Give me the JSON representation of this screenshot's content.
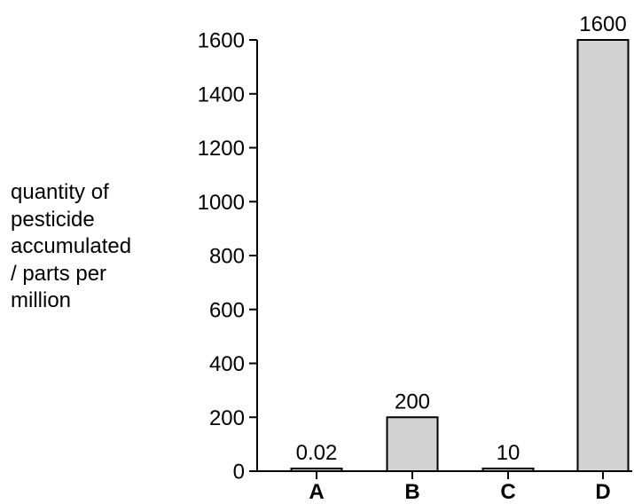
{
  "chart_data": {
    "type": "bar",
    "title": "",
    "xlabel": "",
    "ylabel_lines": [
      "quantity of",
      "pesticide",
      "accumulated",
      "/ parts per",
      "million"
    ],
    "categories": [
      "A",
      "B",
      "C",
      "D"
    ],
    "values": [
      0.02,
      200,
      10,
      1600
    ],
    "data_labels": [
      "0.02",
      "200",
      "10",
      "1600"
    ],
    "ylim": [
      0,
      1600
    ],
    "yticks": [
      0,
      200,
      400,
      600,
      800,
      1000,
      1200,
      1400,
      1600
    ],
    "grid": false,
    "bar_color": "#d3d3d3",
    "bar_edge_color": "#000000"
  }
}
